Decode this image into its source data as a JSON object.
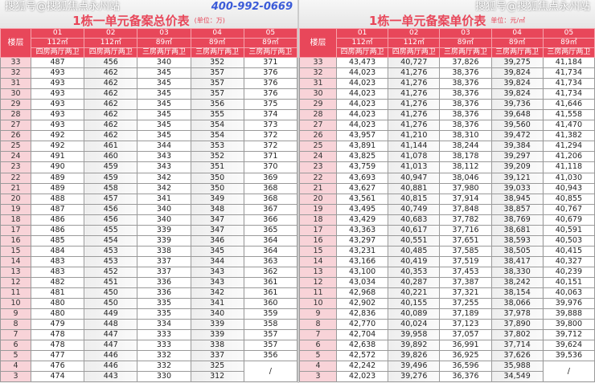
{
  "watermark_top": "搜狐号@搜狐焦点永州站",
  "watermark_bottom": "搜狐号@搜狐焦点永州站",
  "watermark_phone": "400-992-0669",
  "colors": {
    "header": "#e8475a",
    "floor_cell": "#f8d3d8"
  },
  "left": {
    "title": "1栋一单元备案总价表",
    "unit": "(单位：万)",
    "floor_label": "楼层",
    "units": [
      "01",
      "02",
      "03",
      "04",
      "05"
    ],
    "areas": [
      "112㎡",
      "112㎡",
      "89㎡",
      "89㎡",
      "89㎡"
    ],
    "types": [
      "四房两厅两卫",
      "四房两厅两卫",
      "三房两厅两卫",
      "三房两厅两卫",
      "三房两厅两卫"
    ],
    "rows": [
      [
        "33",
        "487",
        "456",
        "340",
        "352",
        "371"
      ],
      [
        "32",
        "493",
        "462",
        "345",
        "357",
        "376"
      ],
      [
        "31",
        "493",
        "462",
        "345",
        "357",
        "376"
      ],
      [
        "30",
        "493",
        "462",
        "345",
        "357",
        "376"
      ],
      [
        "29",
        "493",
        "462",
        "345",
        "356",
        "375"
      ],
      [
        "28",
        "493",
        "462",
        "345",
        "355",
        "374"
      ],
      [
        "27",
        "493",
        "462",
        "345",
        "354",
        "373"
      ],
      [
        "26",
        "492",
        "462",
        "345",
        "354",
        "372"
      ],
      [
        "25",
        "492",
        "461",
        "344",
        "353",
        "372"
      ],
      [
        "24",
        "491",
        "460",
        "343",
        "352",
        "371"
      ],
      [
        "23",
        "490",
        "459",
        "343",
        "351",
        "370"
      ],
      [
        "22",
        "489",
        "459",
        "342",
        "350",
        "369"
      ],
      [
        "21",
        "489",
        "458",
        "342",
        "350",
        "368"
      ],
      [
        "20",
        "488",
        "457",
        "341",
        "349",
        "368"
      ],
      [
        "19",
        "487",
        "456",
        "340",
        "348",
        "367"
      ],
      [
        "18",
        "486",
        "456",
        "340",
        "347",
        "366"
      ],
      [
        "17",
        "486",
        "455",
        "339",
        "347",
        "365"
      ],
      [
        "16",
        "485",
        "454",
        "339",
        "346",
        "364"
      ],
      [
        "15",
        "484",
        "453",
        "338",
        "345",
        "364"
      ],
      [
        "14",
        "483",
        "453",
        "337",
        "344",
        "363"
      ],
      [
        "13",
        "483",
        "452",
        "337",
        "343",
        "362"
      ],
      [
        "12",
        "482",
        "451",
        "336",
        "343",
        "361"
      ],
      [
        "11",
        "481",
        "450",
        "336",
        "342",
        "361"
      ],
      [
        "10",
        "480",
        "450",
        "335",
        "341",
        "360"
      ],
      [
        "9",
        "480",
        "449",
        "335",
        "340",
        "359"
      ],
      [
        "8",
        "479",
        "448",
        "334",
        "339",
        "358"
      ],
      [
        "7",
        "478",
        "447",
        "333",
        "339",
        "357"
      ],
      [
        "6",
        "478",
        "447",
        "333",
        "338",
        "357"
      ],
      [
        "5",
        "477",
        "446",
        "332",
        "337",
        "356"
      ],
      [
        "4",
        "476",
        "446",
        "332",
        "325",
        "/"
      ],
      [
        "3",
        "474",
        "443",
        "330",
        "312",
        ""
      ]
    ]
  },
  "right": {
    "title": "1栋一单元备案单价表",
    "unit": "单位：元/㎡",
    "floor_label": "楼层",
    "units": [
      "01",
      "02",
      "03",
      "04",
      "05"
    ],
    "areas": [
      "112㎡",
      "112㎡",
      "89㎡",
      "89㎡",
      "89㎡"
    ],
    "types": [
      "四房两厅两卫",
      "四房两厅两卫",
      "三房两厅两卫",
      "三房两厅两卫",
      "三房两厅两卫"
    ],
    "rows": [
      [
        "33",
        "43,473",
        "40,727",
        "37,826",
        "39,275",
        "41,184"
      ],
      [
        "32",
        "44,023",
        "41,276",
        "38,376",
        "39,824",
        "41,734"
      ],
      [
        "31",
        "44,023",
        "41,276",
        "38,376",
        "39,824",
        "41,734"
      ],
      [
        "30",
        "44,023",
        "41,276",
        "38,376",
        "39,824",
        "41,734"
      ],
      [
        "29",
        "44,023",
        "41,276",
        "38,376",
        "39,736",
        "41,646"
      ],
      [
        "28",
        "44,023",
        "41,276",
        "38,376",
        "39,648",
        "41,558"
      ],
      [
        "27",
        "44,023",
        "41,276",
        "38,376",
        "39,560",
        "41,470"
      ],
      [
        "26",
        "43,957",
        "41,210",
        "38,310",
        "39,472",
        "41,382"
      ],
      [
        "25",
        "43,891",
        "41,144",
        "38,244",
        "39,384",
        "41,294"
      ],
      [
        "24",
        "43,825",
        "41,078",
        "38,178",
        "39,297",
        "41,206"
      ],
      [
        "23",
        "43,759",
        "41,013",
        "38,112",
        "39,209",
        "41,118"
      ],
      [
        "22",
        "43,693",
        "40,947",
        "38,046",
        "39,121",
        "41,030"
      ],
      [
        "21",
        "43,627",
        "40,881",
        "37,980",
        "39,033",
        "40,943"
      ],
      [
        "20",
        "43,561",
        "40,815",
        "37,914",
        "38,945",
        "40,855"
      ],
      [
        "19",
        "43,495",
        "40,749",
        "37,848",
        "38,857",
        "40,767"
      ],
      [
        "18",
        "43,429",
        "40,683",
        "37,782",
        "38,769",
        "40,679"
      ],
      [
        "17",
        "43,363",
        "40,617",
        "37,716",
        "38,681",
        "40,591"
      ],
      [
        "16",
        "43,297",
        "40,551",
        "37,651",
        "38,593",
        "40,503"
      ],
      [
        "15",
        "43,231",
        "40,485",
        "37,585",
        "38,505",
        "40,415"
      ],
      [
        "14",
        "43,166",
        "40,419",
        "37,519",
        "38,417",
        "40,327"
      ],
      [
        "13",
        "43,100",
        "40,353",
        "37,453",
        "38,330",
        "40,239"
      ],
      [
        "12",
        "43,034",
        "40,287",
        "37,387",
        "38,242",
        "40,151"
      ],
      [
        "11",
        "42,968",
        "40,221",
        "37,321",
        "38,154",
        "40,063"
      ],
      [
        "10",
        "42,902",
        "40,155",
        "37,255",
        "38,066",
        "39,976"
      ],
      [
        "9",
        "42,836",
        "40,089",
        "37,189",
        "37,978",
        "39,888"
      ],
      [
        "8",
        "42,770",
        "40,024",
        "37,123",
        "37,890",
        "39,800"
      ],
      [
        "7",
        "42,704",
        "39,958",
        "37,057",
        "37,802",
        "39,712"
      ],
      [
        "6",
        "42,638",
        "39,892",
        "36,991",
        "37,714",
        "39,624"
      ],
      [
        "5",
        "42,572",
        "39,826",
        "36,925",
        "37,626",
        "39,536"
      ],
      [
        "4",
        "42,242",
        "39,496",
        "36,596",
        "35,988",
        "/"
      ],
      [
        "3",
        "42,023",
        "39,276",
        "36,376",
        "34,549",
        ""
      ]
    ]
  }
}
